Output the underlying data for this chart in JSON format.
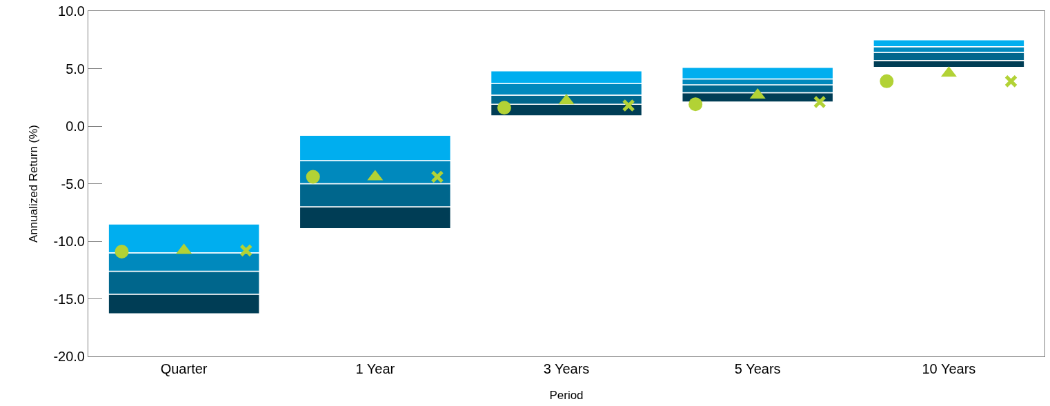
{
  "chart_data": {
    "type": "bar",
    "xlabel": "Period",
    "ylabel": "Annualized Return (%)",
    "categories": [
      "Quarter",
      "1 Year",
      "3 Years",
      "5 Years",
      "10 Years"
    ],
    "series": [
      {
        "color": "#003d55",
        "base": [
          -16.3,
          -8.9,
          0.9,
          2.1,
          5.1
        ],
        "values": [
          1.7,
          1.9,
          1.0,
          0.8,
          0.6
        ]
      },
      {
        "color": "#00668c",
        "base": [
          -14.6,
          -7.0,
          1.9,
          2.9,
          5.7
        ],
        "values": [
          2.0,
          2.0,
          0.8,
          0.7,
          0.7
        ]
      },
      {
        "color": "#0089bd",
        "base": [
          -12.6,
          -5.0,
          2.7,
          3.6,
          6.4
        ],
        "values": [
          1.6,
          2.0,
          1.0,
          0.5,
          0.5
        ]
      },
      {
        "color": "#00aeef",
        "base": [
          -11.0,
          -3.0,
          3.7,
          4.1,
          6.9
        ],
        "values": [
          2.5,
          2.2,
          1.1,
          1.0,
          0.6
        ]
      },
      {
        "type": "scatter",
        "marker": "circle",
        "color": "#b2d235",
        "x": [
          "Quarter",
          "1 Year",
          "3 Years",
          "5 Years",
          "10 Years"
        ],
        "values": [
          -10.9,
          -4.4,
          1.6,
          1.9,
          3.9
        ]
      },
      {
        "type": "scatter",
        "marker": "triangle",
        "color": "#b2d235",
        "x": [
          "Quarter",
          "1 Year",
          "3 Years",
          "5 Years",
          "10 Years"
        ],
        "values": [
          -10.8,
          -4.4,
          2.2,
          2.7,
          4.6
        ]
      },
      {
        "type": "scatter",
        "marker": "cross",
        "color": "#b2d235",
        "x": [
          "Quarter",
          "1 Year",
          "3 Years",
          "5 Years",
          "10 Years"
        ],
        "values": [
          -10.8,
          -4.4,
          1.8,
          2.1,
          3.9
        ]
      }
    ],
    "ylim": [
      -20,
      10
    ],
    "yticks": [
      {
        "value": -20,
        "label": "-20.0"
      },
      {
        "value": -15,
        "label": "-15.0"
      },
      {
        "value": -10,
        "label": "-10.0"
      },
      {
        "value": -5,
        "label": "-5.0"
      },
      {
        "value": 0,
        "label": "0.0"
      },
      {
        "value": 5,
        "label": "5.0"
      },
      {
        "value": 10,
        "label": "10.0"
      }
    ],
    "grid": false
  }
}
